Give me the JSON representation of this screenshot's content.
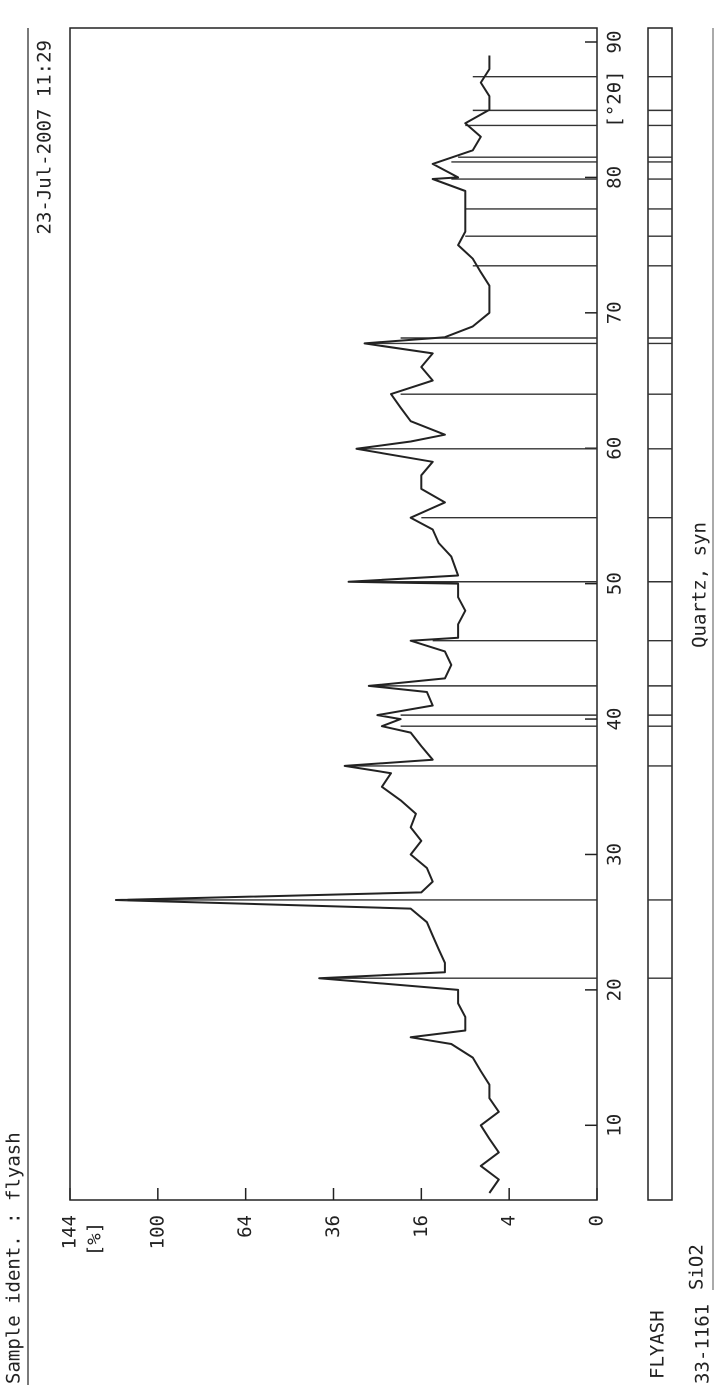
{
  "chart_data": {
    "type": "line",
    "title": "Sample ident. : flyash",
    "subtitle": "23-Jul-2007 11:29",
    "y_label": "[%]",
    "x_label": "[°2θ]",
    "scale": "sqrt",
    "xlim": [
      5,
      90
    ],
    "ylim": [
      0,
      144
    ],
    "xticks": [
      10,
      20,
      30,
      40,
      50,
      60,
      70,
      80,
      90
    ],
    "yticks": [
      0,
      4,
      16,
      36,
      64,
      100,
      144
    ],
    "series": [
      {
        "name": "FLYASH",
        "color": "#222222",
        "x": [
          5,
          6,
          7,
          8,
          9,
          10,
          11,
          12,
          13,
          14,
          15,
          16,
          16.5,
          17,
          18,
          19,
          20,
          20.86,
          21.3,
          22,
          23,
          24,
          25,
          26,
          26.64,
          27.2,
          28,
          29,
          30,
          31,
          32,
          33,
          34,
          35,
          36,
          36.54,
          37,
          38,
          39,
          39.47,
          40,
          40.29,
          41,
          42,
          42.45,
          43,
          44,
          45,
          45.79,
          46,
          47,
          48,
          49,
          50,
          50.14,
          50.6,
          52,
          53,
          54,
          54.87,
          56,
          57,
          58,
          59,
          59.96,
          60.5,
          61,
          62,
          63,
          64,
          65,
          66,
          67,
          67.74,
          68.2,
          69,
          70,
          71,
          72,
          73,
          74,
          75,
          76,
          77,
          78,
          79,
          79.88,
          80,
          81,
          82,
          83,
          84,
          85,
          86,
          87,
          88,
          89
        ],
        "values": [
          6,
          5,
          7,
          5,
          6,
          7,
          5,
          6,
          6,
          7,
          8,
          11,
          18,
          9,
          9,
          10,
          10,
          40,
          12,
          12,
          13,
          14,
          15,
          18,
          120,
          16,
          14,
          15,
          18,
          16,
          18,
          17,
          20,
          24,
          22,
          33,
          14,
          16,
          18,
          24,
          20,
          25,
          14,
          15,
          27,
          12,
          11,
          12,
          18,
          10,
          10,
          9,
          10,
          10,
          32,
          10,
          11,
          13,
          14,
          18,
          12,
          16,
          16,
          14,
          30,
          18,
          12,
          18,
          20,
          22,
          14,
          16,
          14,
          28,
          12,
          8,
          6,
          6,
          6,
          7,
          8,
          10,
          9,
          9,
          9,
          9,
          14,
          10,
          14,
          8,
          7,
          9,
          6,
          6,
          7,
          6,
          6
        ]
      }
    ],
    "reference": {
      "code": "33-1161",
      "formula": "SiO2",
      "name": "Quartz, syn",
      "color": "#333333",
      "positions": [
        20.86,
        26.64,
        36.54,
        39.47,
        40.29,
        42.45,
        45.79,
        50.14,
        54.87,
        59.96,
        63.99,
        67.74,
        68.14,
        73.47,
        75.66,
        77.67,
        79.88,
        81.14,
        81.49,
        83.84,
        84.95,
        87.44
      ],
      "heights": [
        40,
        120,
        33,
        20,
        20,
        26,
        14,
        32,
        16,
        30,
        20,
        27,
        20,
        8,
        9,
        9,
        11,
        11,
        10,
        9,
        8,
        8
      ]
    }
  }
}
